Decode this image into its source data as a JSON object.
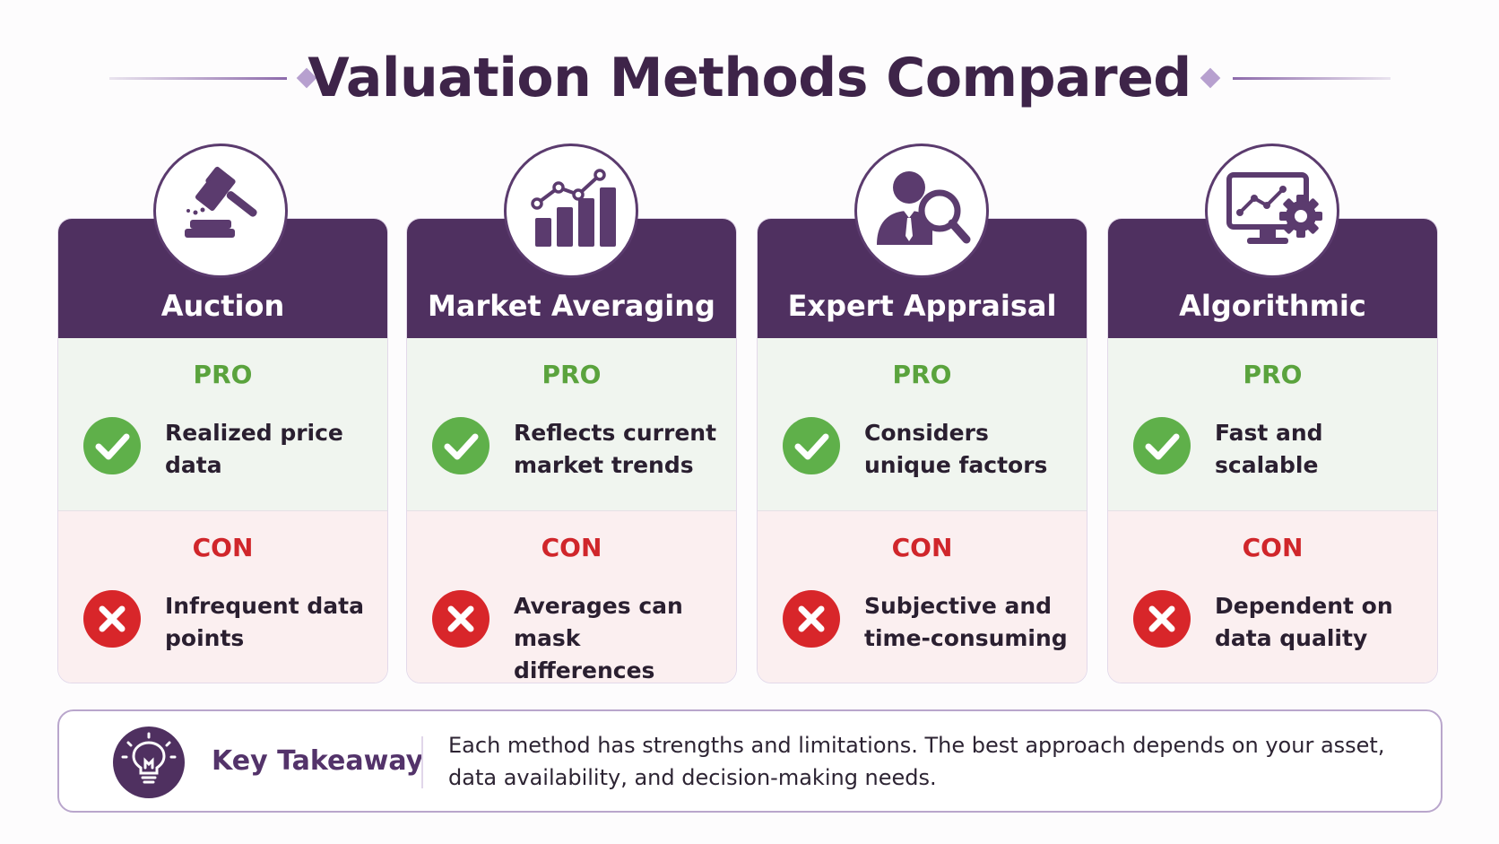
{
  "header": {
    "title": "Valuation Methods Compared"
  },
  "colors": {
    "header_purple": "#4f3060",
    "pro_green": "#5aa33d",
    "con_red": "#d0262b",
    "pro_bg": "#f0f5ef",
    "con_bg": "#fbeff0"
  },
  "methods": [
    {
      "name": "Auction",
      "icon": "gavel-icon",
      "pro_label": "PRO",
      "pro_text": "Realized price data",
      "con_label": "CON",
      "con_text": "Infrequent data points"
    },
    {
      "name": "Market Averaging",
      "icon": "bar-chart-trend-icon",
      "pro_label": "PRO",
      "pro_text": "Reflects current market trends",
      "con_label": "CON",
      "con_text": "Averages can mask differences"
    },
    {
      "name": "Expert Appraisal",
      "icon": "expert-magnifier-icon",
      "pro_label": "PRO",
      "pro_text": "Considers unique factors",
      "con_label": "CON",
      "con_text": "Subjective and time-consuming"
    },
    {
      "name": "Algorithmic",
      "icon": "monitor-gear-icon",
      "pro_label": "PRO",
      "pro_text": "Fast and scalable",
      "con_label": "CON",
      "con_text": "Dependent on data quality"
    }
  ],
  "takeaway": {
    "icon": "lightbulb-icon",
    "label": "Key Takeaway",
    "text": "Each method has strengths and limitations. The best approach depends on your asset, data availability, and decision-making needs."
  }
}
